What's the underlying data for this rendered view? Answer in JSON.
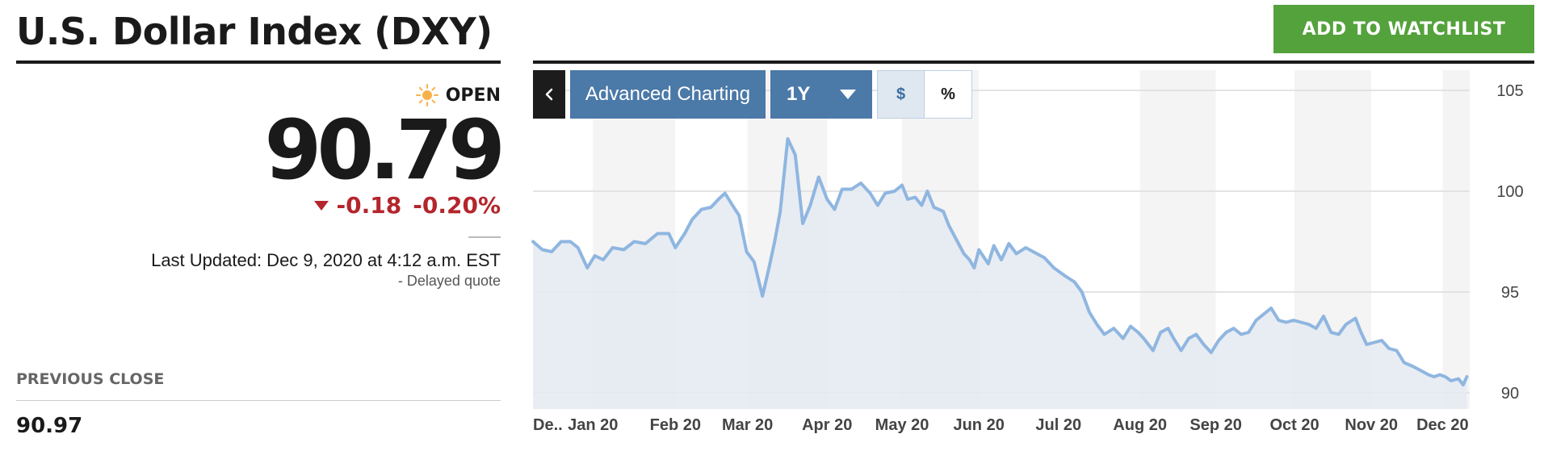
{
  "header": {
    "title": "U.S. Dollar Index (DXY)",
    "watchlist_label": "ADD TO WATCHLIST",
    "watchlist_color": "#54a23c"
  },
  "quote": {
    "status_icon": "sun-icon",
    "status": "OPEN",
    "price": "90.79",
    "change": "-0.18",
    "change_pct": "-0.20%",
    "change_color": "#b3262c",
    "last_updated": "Last Updated: Dec 9, 2020 at 4:12 a.m. EST",
    "delayed": "-  Delayed quote"
  },
  "previous_close": {
    "label": "PREVIOUS CLOSE",
    "value": "90.97"
  },
  "toolbar": {
    "back_icon": "chevron-left-icon",
    "advanced_label": "Advanced Charting",
    "range_label": "1Y",
    "dollar_label": "$",
    "percent_label": "%",
    "button_color": "#4b79a8"
  },
  "chart_data": {
    "type": "area",
    "line_color": "#8fb6e0",
    "fill_color": "#e4eaf2",
    "ylim": [
      89.2,
      106
    ],
    "yticks": [
      "105",
      "100",
      "95",
      "90"
    ],
    "ytick_values": [
      105,
      100,
      95,
      90
    ],
    "x_labels": [
      "De..",
      "Jan 20",
      "Feb 20",
      "Mar 20",
      "Apr 20",
      "May 20",
      "Jun 20",
      "Jul 20",
      "Aug 20",
      "Sep 20",
      "Oct 20",
      "Nov 20",
      "Dec 20"
    ],
    "x_label_pos": [
      0.0,
      0.064,
      0.152,
      0.229,
      0.314,
      0.394,
      0.476,
      0.561,
      0.648,
      0.729,
      0.813,
      0.895,
      0.971
    ],
    "x_range": [
      0,
      1
    ],
    "shaded_months": [
      [
        0.064,
        0.152
      ],
      [
        0.229,
        0.314
      ],
      [
        0.394,
        0.476
      ],
      [
        0.648,
        0.729
      ],
      [
        0.813,
        0.895
      ],
      [
        0.971,
        1.0
      ]
    ],
    "grid": true,
    "series": [
      {
        "values": [
          [
            0.0,
            97.5
          ],
          [
            0.01,
            97.1
          ],
          [
            0.02,
            97.0
          ],
          [
            0.03,
            97.5
          ],
          [
            0.04,
            97.5
          ],
          [
            0.048,
            97.2
          ],
          [
            0.058,
            96.2
          ],
          [
            0.066,
            96.8
          ],
          [
            0.075,
            96.6
          ],
          [
            0.085,
            97.2
          ],
          [
            0.097,
            97.1
          ],
          [
            0.108,
            97.5
          ],
          [
            0.12,
            97.4
          ],
          [
            0.133,
            97.9
          ],
          [
            0.145,
            97.9
          ],
          [
            0.152,
            97.2
          ],
          [
            0.162,
            97.9
          ],
          [
            0.17,
            98.6
          ],
          [
            0.18,
            99.1
          ],
          [
            0.19,
            99.2
          ],
          [
            0.198,
            99.6
          ],
          [
            0.205,
            99.9
          ],
          [
            0.213,
            99.3
          ],
          [
            0.22,
            98.8
          ],
          [
            0.228,
            97.0
          ],
          [
            0.236,
            96.5
          ],
          [
            0.245,
            94.8
          ],
          [
            0.252,
            96.2
          ],
          [
            0.258,
            97.5
          ],
          [
            0.264,
            99.0
          ],
          [
            0.272,
            102.6
          ],
          [
            0.28,
            101.8
          ],
          [
            0.288,
            98.4
          ],
          [
            0.296,
            99.3
          ],
          [
            0.305,
            100.7
          ],
          [
            0.314,
            99.6
          ],
          [
            0.322,
            99.1
          ],
          [
            0.33,
            100.1
          ],
          [
            0.34,
            100.1
          ],
          [
            0.35,
            100.4
          ],
          [
            0.36,
            99.9
          ],
          [
            0.368,
            99.3
          ],
          [
            0.376,
            99.9
          ],
          [
            0.386,
            100.0
          ],
          [
            0.394,
            100.3
          ],
          [
            0.4,
            99.6
          ],
          [
            0.408,
            99.7
          ],
          [
            0.415,
            99.3
          ],
          [
            0.421,
            100.0
          ],
          [
            0.428,
            99.2
          ],
          [
            0.438,
            99.0
          ],
          [
            0.444,
            98.3
          ],
          [
            0.452,
            97.6
          ],
          [
            0.46,
            96.9
          ],
          [
            0.466,
            96.6
          ],
          [
            0.471,
            96.2
          ],
          [
            0.476,
            97.1
          ],
          [
            0.486,
            96.4
          ],
          [
            0.492,
            97.3
          ],
          [
            0.5,
            96.6
          ],
          [
            0.508,
            97.4
          ],
          [
            0.516,
            96.9
          ],
          [
            0.526,
            97.2
          ],
          [
            0.534,
            97.0
          ],
          [
            0.546,
            96.7
          ],
          [
            0.556,
            96.2
          ],
          [
            0.568,
            95.8
          ],
          [
            0.578,
            95.5
          ],
          [
            0.586,
            95.0
          ],
          [
            0.594,
            94.0
          ],
          [
            0.602,
            93.4
          ],
          [
            0.61,
            92.9
          ],
          [
            0.62,
            93.2
          ],
          [
            0.63,
            92.7
          ],
          [
            0.638,
            93.3
          ],
          [
            0.646,
            93.0
          ],
          [
            0.652,
            92.7
          ],
          [
            0.662,
            92.1
          ],
          [
            0.67,
            93.0
          ],
          [
            0.678,
            93.2
          ],
          [
            0.684,
            92.7
          ],
          [
            0.692,
            92.1
          ],
          [
            0.7,
            92.7
          ],
          [
            0.708,
            92.9
          ],
          [
            0.716,
            92.4
          ],
          [
            0.724,
            92.0
          ],
          [
            0.732,
            92.6
          ],
          [
            0.74,
            93.0
          ],
          [
            0.748,
            93.2
          ],
          [
            0.756,
            92.9
          ],
          [
            0.764,
            93.0
          ],
          [
            0.772,
            93.6
          ],
          [
            0.78,
            93.9
          ],
          [
            0.788,
            94.2
          ],
          [
            0.796,
            93.6
          ],
          [
            0.804,
            93.5
          ],
          [
            0.812,
            93.6
          ],
          [
            0.82,
            93.5
          ],
          [
            0.828,
            93.4
          ],
          [
            0.836,
            93.2
          ],
          [
            0.844,
            93.8
          ],
          [
            0.852,
            93.0
          ],
          [
            0.86,
            92.9
          ],
          [
            0.868,
            93.4
          ],
          [
            0.878,
            93.7
          ],
          [
            0.884,
            93.0
          ],
          [
            0.89,
            92.4
          ],
          [
            0.898,
            92.5
          ],
          [
            0.906,
            92.6
          ],
          [
            0.914,
            92.2
          ],
          [
            0.922,
            92.1
          ],
          [
            0.93,
            91.5
          ],
          [
            0.94,
            91.3
          ],
          [
            0.948,
            91.1
          ],
          [
            0.956,
            90.9
          ],
          [
            0.962,
            90.8
          ],
          [
            0.968,
            90.9
          ],
          [
            0.974,
            90.8
          ],
          [
            0.98,
            90.6
          ],
          [
            0.988,
            90.7
          ],
          [
            0.993,
            90.4
          ],
          [
            0.997,
            90.8
          ]
        ]
      }
    ]
  }
}
